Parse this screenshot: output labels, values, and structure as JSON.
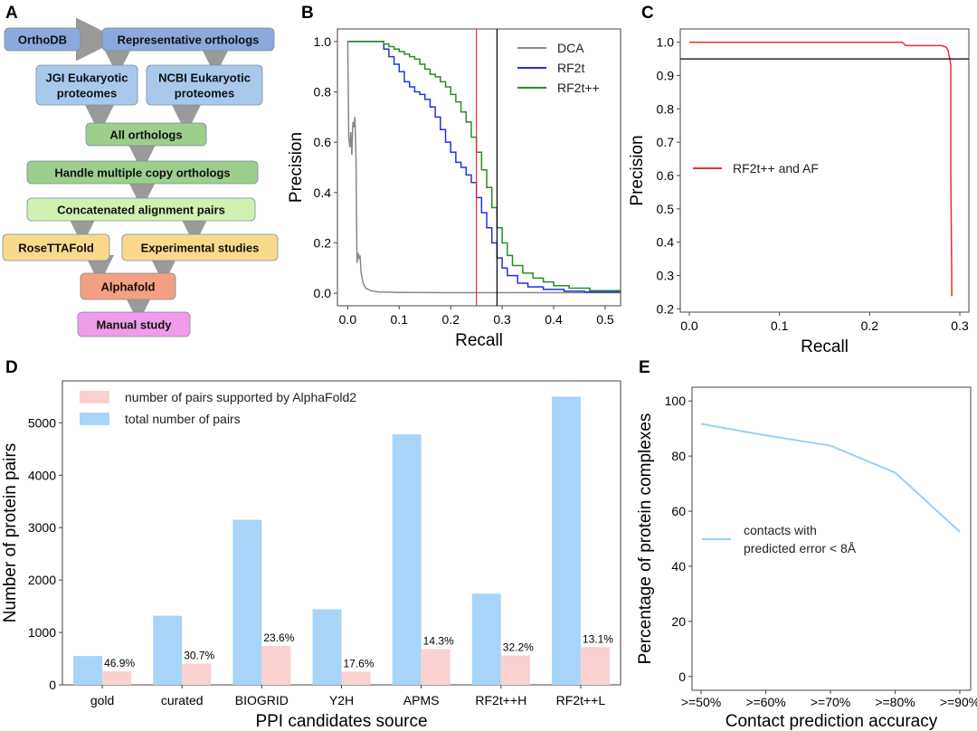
{
  "panels": {
    "A": "A",
    "B": "B",
    "C": "C",
    "D": "D",
    "E": "E"
  },
  "flowchart": {
    "nodes": [
      {
        "id": "orthodb",
        "label": "OrthoDB",
        "color": "#8aa9dc"
      },
      {
        "id": "rep",
        "label": "Representative orthologs",
        "color": "#8aa9dc"
      },
      {
        "id": "jgi",
        "label": "JGI Eukaryotic\nproteomes",
        "color": "#a9c9ec"
      },
      {
        "id": "ncbi",
        "label": "NCBI Eukaryotic\nproteomes",
        "color": "#a9c9ec"
      },
      {
        "id": "all",
        "label": "All orthologs",
        "color": "#9ccf8c"
      },
      {
        "id": "handle",
        "label": "Handle multiple copy orthologs",
        "color": "#9ccf8c"
      },
      {
        "id": "concat",
        "label": "Concatenated alignment pairs",
        "color": "#d1f1b2"
      },
      {
        "id": "rosetta",
        "label": "RoseTTAFold",
        "color": "#fbd98c"
      },
      {
        "id": "exp",
        "label": "Experimental studies",
        "color": "#fbd98c"
      },
      {
        "id": "alpha",
        "label": "Alphafold",
        "color": "#f3a182"
      },
      {
        "id": "manual",
        "label": "Manual study",
        "color": "#ef9de8"
      }
    ]
  },
  "chart_data": [
    {
      "panel": "B",
      "type": "line",
      "xlabel": "Recall",
      "ylabel": "Precision",
      "xlim": [
        -0.02,
        0.53
      ],
      "ylim": [
        -0.05,
        1.05
      ],
      "xticks": [
        "0.0",
        "0.1",
        "0.2",
        "0.3",
        "0.4",
        "0.5"
      ],
      "yticks": [
        "0.0",
        "0.2",
        "0.4",
        "0.6",
        "0.8",
        "1.0"
      ],
      "legend": "top-right",
      "vlines": [
        {
          "x": 0.25,
          "color": "#e83030"
        },
        {
          "x": 0.29,
          "color": "#000000"
        }
      ],
      "series": [
        {
          "name": "DCA",
          "color": "#888888",
          "x": [
            0.0,
            0.002,
            0.004,
            0.006,
            0.008,
            0.01,
            0.012,
            0.014,
            0.016,
            0.018,
            0.02,
            0.022,
            0.024,
            0.026,
            0.03,
            0.035,
            0.045,
            0.06,
            0.1,
            0.2,
            0.3,
            0.53
          ],
          "y": [
            1.0,
            0.62,
            0.58,
            0.64,
            0.55,
            0.68,
            0.66,
            0.7,
            0.55,
            0.12,
            0.16,
            0.14,
            0.15,
            0.08,
            0.04,
            0.02,
            0.01,
            0.005,
            0.003,
            0.002,
            0.002,
            0.002
          ]
        },
        {
          "name": "RF2t",
          "color": "#2233dd",
          "x": [
            0.0,
            0.06,
            0.07,
            0.08,
            0.09,
            0.1,
            0.11,
            0.12,
            0.13,
            0.14,
            0.15,
            0.16,
            0.17,
            0.18,
            0.19,
            0.2,
            0.21,
            0.22,
            0.23,
            0.24,
            0.25,
            0.26,
            0.27,
            0.28,
            0.29,
            0.3,
            0.31,
            0.33,
            0.35,
            0.38,
            0.42,
            0.46,
            0.53
          ],
          "y": [
            1.0,
            1.0,
            0.97,
            0.94,
            0.91,
            0.88,
            0.84,
            0.82,
            0.8,
            0.79,
            0.77,
            0.74,
            0.7,
            0.65,
            0.6,
            0.56,
            0.52,
            0.5,
            0.47,
            0.44,
            0.38,
            0.32,
            0.26,
            0.2,
            0.14,
            0.1,
            0.07,
            0.04,
            0.025,
            0.015,
            0.008,
            0.005,
            0.003
          ]
        },
        {
          "name": "RF2t++",
          "color": "#2a8a2a",
          "x": [
            0.0,
            0.06,
            0.07,
            0.08,
            0.09,
            0.1,
            0.11,
            0.12,
            0.13,
            0.14,
            0.15,
            0.16,
            0.17,
            0.18,
            0.19,
            0.2,
            0.21,
            0.22,
            0.23,
            0.24,
            0.25,
            0.26,
            0.27,
            0.28,
            0.29,
            0.3,
            0.31,
            0.32,
            0.34,
            0.36,
            0.38,
            0.4,
            0.43,
            0.47,
            0.53
          ],
          "y": [
            1.0,
            1.0,
            0.99,
            0.98,
            0.97,
            0.96,
            0.95,
            0.94,
            0.93,
            0.91,
            0.89,
            0.87,
            0.86,
            0.84,
            0.82,
            0.79,
            0.76,
            0.72,
            0.68,
            0.62,
            0.56,
            0.49,
            0.42,
            0.34,
            0.26,
            0.2,
            0.15,
            0.11,
            0.08,
            0.06,
            0.045,
            0.03,
            0.02,
            0.01,
            0.005
          ]
        }
      ]
    },
    {
      "panel": "C",
      "type": "line",
      "xlabel": "Recall",
      "ylabel": "Precision",
      "xlim": [
        -0.01,
        0.31
      ],
      "ylim": [
        0.19,
        1.04
      ],
      "xticks": [
        "0.0",
        "0.1",
        "0.2",
        "0.3"
      ],
      "yticks": [
        "0.2",
        "0.3",
        "0.4",
        "0.5",
        "0.6",
        "0.7",
        "0.8",
        "0.9",
        "1.0"
      ],
      "legend": "center-left",
      "hlines": [
        {
          "y": 0.95,
          "color": "#000000"
        }
      ],
      "series": [
        {
          "name": "RF2t++ and AF",
          "color": "#e83030",
          "x": [
            0.0,
            0.236,
            0.24,
            0.28,
            0.285,
            0.287,
            0.288,
            0.289,
            0.29,
            0.29,
            0.291,
            0.291,
            0.292
          ],
          "y": [
            1.0,
            1.0,
            0.99,
            0.99,
            0.985,
            0.975,
            0.96,
            0.95,
            0.93,
            0.6,
            0.3,
            0.24,
            0.24
          ]
        }
      ]
    },
    {
      "panel": "D",
      "type": "bar",
      "xlabel": "PPI candidates source",
      "ylabel": "Number of protein pairs",
      "ylim": [
        0,
        5800
      ],
      "yticks": [
        "0",
        "1000",
        "2000",
        "3000",
        "4000",
        "5000"
      ],
      "legend": "top-left",
      "categories": [
        "gold",
        "curated",
        "BIOGRID",
        "Y2H",
        "APMS",
        "RF2t++H",
        "RF2t++L"
      ],
      "series": [
        {
          "name": "total number of pairs",
          "color": "#a8d4f8",
          "values": [
            550,
            1320,
            3150,
            1440,
            4780,
            1740,
            5500
          ]
        },
        {
          "name": "number of pairs supported by AlphaFold2",
          "color": "#fbd0d0",
          "values": [
            258,
            405,
            743,
            253,
            684,
            560,
            720
          ]
        }
      ],
      "data_labels": [
        "46.9%",
        "30.7%",
        "23.6%",
        "17.6%",
        "14.3%",
        "32.2%",
        "13.1%"
      ]
    },
    {
      "panel": "E",
      "type": "line",
      "xlabel": "Contact prediction accuracy",
      "ylabel": "Percentage of protein complexes",
      "ylim": [
        -5,
        105
      ],
      "yticks": [
        "0",
        "20",
        "40",
        "60",
        "80",
        "100"
      ],
      "legend": "center-left",
      "categories": [
        ">=50%",
        ">=60%",
        ">=70%",
        ">=80%",
        ">=90%"
      ],
      "series": [
        {
          "name": "contacts with\npredicted error < 8Å",
          "color": "#9ecff0",
          "values": [
            91.7,
            87.5,
            83.8,
            74.0,
            52.5
          ]
        }
      ]
    }
  ]
}
